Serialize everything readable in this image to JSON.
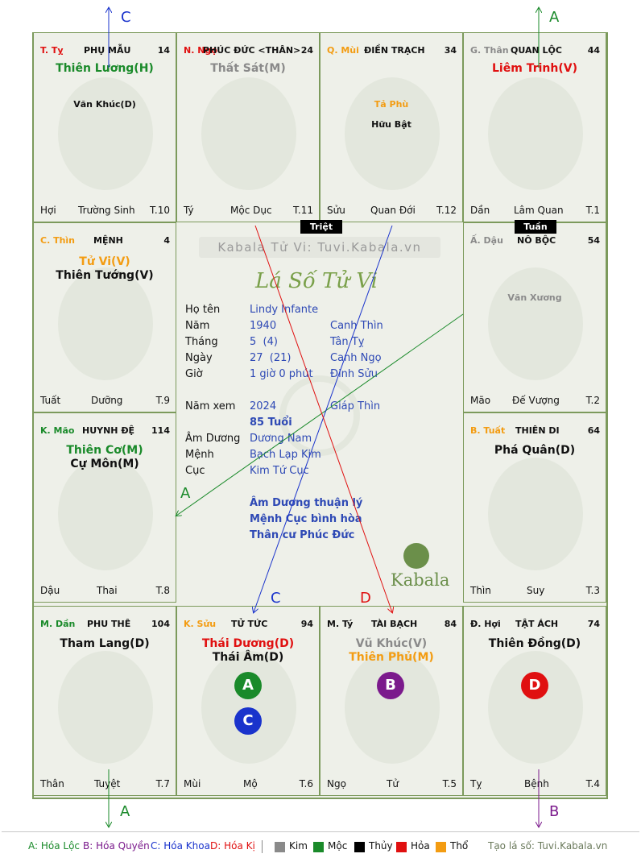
{
  "watermark": "Kabala Tử Vi: Tuvi.Kabala.vn",
  "logo_script": "Lá Số Tử Vi",
  "brand": "Kabala",
  "colors": {
    "green": "#1a8a2a",
    "red": "#e01010",
    "orange": "#f39c12",
    "gray": "#8a8a8a",
    "purple": "#7b1a8c",
    "blue": "#1a33cc",
    "black": "#111111",
    "infoBlue": "#2e49b5"
  },
  "cells": {
    "ty": {
      "stem": "T. Tỵ",
      "palace": "PHỤ MẪU",
      "num": "14",
      "main": [
        {
          "text": "Thiên Lương(H)",
          "color": "green"
        }
      ],
      "minor": [
        {
          "text": "Văn Khúc(D)",
          "color": "black"
        }
      ],
      "bl": "Hợi",
      "bm": "Trường Sinh",
      "br": "T.10"
    },
    "ngo": {
      "stem": "N. Ngọ",
      "palace": "PHÚC ĐỨC <THÂN>",
      "num": "24",
      "main": [
        {
          "text": "Thất Sát(M)",
          "color": "gray"
        }
      ],
      "minor": [],
      "bl": "Tý",
      "bm": "Mộc Dục",
      "br": "T.11"
    },
    "mui": {
      "stem": "Q. Mùi",
      "palace": "ĐIỀN TRẠCH",
      "num": "34",
      "main": [],
      "minor": [
        {
          "text": "Tả Phù",
          "color": "orange"
        },
        {
          "text": "Hữu Bật",
          "color": "black"
        }
      ],
      "bl": "Sửu",
      "bm": "Quan Đới",
      "br": "T.12"
    },
    "than": {
      "stem": "G. Thân",
      "palace": "QUAN LỘC",
      "num": "44",
      "main": [
        {
          "text": "Liêm Trinh(V)",
          "color": "red"
        }
      ],
      "minor": [],
      "bl": "Dần",
      "bm": "Lâm Quan",
      "br": "T.1"
    },
    "thin": {
      "stem": "C. Thìn",
      "palace": "MỆNH",
      "num": "4",
      "main": [
        {
          "text": "Tử Vi(V)",
          "color": "orange"
        },
        {
          "text": "Thiên Tướng(V)",
          "color": "black"
        }
      ],
      "minor": [],
      "bl": "Tuất",
      "bm": "Dưỡng",
      "br": "T.9"
    },
    "dau": {
      "stem": "Ấ. Dậu",
      "palace": "NÔ BỘC",
      "num": "54",
      "main": [],
      "minor": [
        {
          "text": "Văn Xương",
          "color": "gray"
        }
      ],
      "bl": "Mão",
      "bm": "Đế Vượng",
      "br": "T.2"
    },
    "mao": {
      "stem": "K. Mão",
      "palace": "HUYNH ĐỆ",
      "num": "114",
      "main": [
        {
          "text": "Thiên Cơ(M)",
          "color": "green"
        },
        {
          "text": "Cự Môn(M)",
          "color": "black"
        }
      ],
      "minor": [],
      "bl": "Dậu",
      "bm": "Thai",
      "br": "T.8"
    },
    "tuat": {
      "stem": "B. Tuất",
      "palace": "THIÊN DI",
      "num": "64",
      "main": [
        {
          "text": "Phá Quân(D)",
          "color": "black"
        }
      ],
      "minor": [],
      "bl": "Thìn",
      "bm": "Suy",
      "br": "T.3"
    },
    "dan": {
      "stem": "M. Dần",
      "palace": "PHU THÊ",
      "num": "104",
      "main": [
        {
          "text": "Tham Lang(D)",
          "color": "black"
        }
      ],
      "minor": [],
      "bl": "Thân",
      "bm": "Tuyệt",
      "br": "T.7"
    },
    "suu": {
      "stem": "K. Sửu",
      "palace": "TỬ TỨC",
      "num": "94",
      "main": [
        {
          "text": "Thái Dương(D)",
          "color": "red"
        },
        {
          "text": "Thái Âm(D)",
          "color": "black"
        }
      ],
      "minor": [],
      "bl": "Mùi",
      "bm": "Mộ",
      "br": "T.6"
    },
    "ty2": {
      "stem": "M. Tý",
      "palace": "TÀI BẠCH",
      "num": "84",
      "main": [
        {
          "text": "Vũ Khúc(V)",
          "color": "gray"
        },
        {
          "text": "Thiên Phủ(M)",
          "color": "orange"
        }
      ],
      "minor": [],
      "bl": "Ngọ",
      "bm": "Tử",
      "br": "T.5"
    },
    "hoi": {
      "stem": "Đ. Hợi",
      "palace": "TẬT ÁCH",
      "num": "74",
      "main": [
        {
          "text": "Thiên Đồng(D)",
          "color": "black"
        }
      ],
      "minor": [],
      "bl": "Tỵ",
      "bm": "Bệnh",
      "br": "T.4"
    }
  },
  "tags": {
    "triet": "Triệt",
    "tuan": "Tuần"
  },
  "info": {
    "ho_ten_label": "Họ tên",
    "ho_ten": "Lindy Infante",
    "nam_label": "Năm",
    "nam": "1940",
    "nam_can": "Canh Thìn",
    "thang_label": "Tháng",
    "thang": "5  (4)",
    "thang_can": "Tân Tỵ",
    "ngay_label": "Ngày",
    "ngay": "27  (21)",
    "ngay_can": "Canh Ngọ",
    "gio_label": "Giờ",
    "gio": "1 giờ 0 phút",
    "gio_can": "Đinh Sửu",
    "nam_xem_label": "Năm xem",
    "nam_xem": "2024",
    "nam_xem_can": "Giáp Thìn",
    "tuoi": "85 Tuổi",
    "am_duong_label": "Âm Dương",
    "am_duong": "Dương Nam",
    "menh_label": "Mệnh",
    "menh": "Bạch Lạp Kim",
    "cuc_label": "Cục",
    "cuc": "Kim Tứ Cục",
    "note1": "Âm Dương thuận lý",
    "note2": "Mệnh Cục bình hòa",
    "note3": "Thân cư Phúc Đức"
  },
  "arrow_labels": {
    "top_left": "C",
    "top_right": "A",
    "center_left": "A",
    "center_bottom_c": "C",
    "center_bottom_d": "D",
    "bottom_a": "A",
    "bottom_b": "B"
  },
  "circles": [
    {
      "letter": "A",
      "color": "#1a8a2a"
    },
    {
      "letter": "C",
      "color": "#1a33cc"
    },
    {
      "letter": "B",
      "color": "#7b1a8c"
    },
    {
      "letter": "D",
      "color": "#e01010"
    }
  ],
  "legend": {
    "a": "A: Hóa Lộc",
    "b": "B: Hóa Quyền",
    "c": "C: Hóa Khoa",
    "d": "D: Hóa Kị",
    "kim": "Kim",
    "moc": "Mộc",
    "thuy": "Thủy",
    "hoa": "Hỏa",
    "tho": "Thổ",
    "site": "Tạo lá số: Tuvi.Kabala.vn"
  }
}
